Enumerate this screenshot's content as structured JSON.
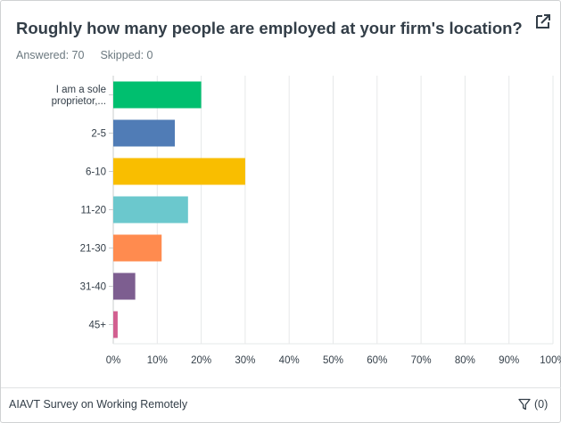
{
  "question": {
    "title": "Roughly how many people are employed at your firm's location? (i....",
    "answered_label": "Answered: 70",
    "skipped_label": "Skipped: 0"
  },
  "footer": {
    "survey_name": "AIAVT Survey on Working Remotely",
    "filter_count": "(0)"
  },
  "icons": {
    "external": "external-link-icon",
    "filter": "filter-icon"
  },
  "chart_data": {
    "type": "bar",
    "orientation": "horizontal",
    "categories": [
      [
        "I am a sole",
        "proprietor,..."
      ],
      [
        "2-5"
      ],
      [
        "6-10"
      ],
      [
        "11-20"
      ],
      [
        "21-30"
      ],
      [
        "31-40"
      ],
      [
        "45+"
      ]
    ],
    "values": [
      20,
      14,
      30,
      17,
      11,
      5,
      1
    ],
    "colors": [
      "#00bf6f",
      "#507cb6",
      "#f9be00",
      "#6bc8cd",
      "#ff8b4f",
      "#7d5e90",
      "#d25f90"
    ],
    "xlim": [
      0,
      100
    ],
    "xticks": [
      "0%",
      "10%",
      "20%",
      "30%",
      "40%",
      "50%",
      "60%",
      "70%",
      "80%",
      "90%",
      "100%"
    ],
    "grid": true
  }
}
